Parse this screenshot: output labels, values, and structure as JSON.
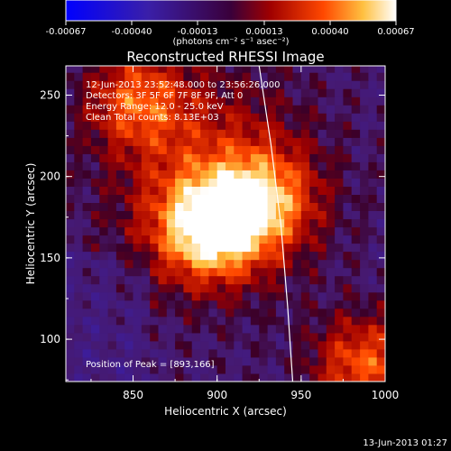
{
  "colorbar": {
    "tick_labels": [
      "-0.00067",
      "-0.00040",
      "-0.00013",
      "0.00013",
      "0.00040",
      "0.00067"
    ],
    "unit_label": "(photons cm⁻² s⁻¹ asec⁻²)",
    "range": [
      -0.00067,
      0.00067
    ]
  },
  "plot": {
    "title": "Reconstructed RHESSI Image",
    "xlabel": "Heliocentric X (arcsec)",
    "ylabel": "Heliocentric Y (arcsec)",
    "x_ticks": [
      "850",
      "900",
      "950",
      "1000"
    ],
    "y_ticks": [
      "100",
      "150",
      "200",
      "250"
    ],
    "annotations": [
      "12-Jun-2013 23:52:48.000 to 23:56:26.000",
      "Detectors: 3F 5F 6F 7F 8F 9F, Att 0",
      "Energy Range: 12.0 - 25.0 keV",
      "Clean     Total counts: 8.13E+03"
    ],
    "peak_label": "Position of Peak = [893,166]",
    "timestamp": "13-Jun-2013 01:27"
  },
  "chart_data": {
    "type": "heatmap",
    "title": "Reconstructed RHESSI Image",
    "xlabel": "Heliocentric X (arcsec)",
    "ylabel": "Heliocentric Y (arcsec)",
    "xlim": [
      810,
      1000
    ],
    "ylim": [
      74,
      268
    ],
    "z_range": [
      -0.00067,
      0.00067
    ],
    "colormap": "blue-purple-red-yellow-white",
    "peak_position": [
      893,
      166
    ],
    "sources": [
      {
        "x": 893,
        "y": 166,
        "amplitude": 0.00067
      },
      {
        "x": 925,
        "y": 183,
        "amplitude": 0.00045
      },
      {
        "x": 850,
        "y": 245,
        "amplitude": 0.0004
      },
      {
        "x": 985,
        "y": 82,
        "amplitude": 0.00045
      }
    ],
    "limb_curve": [
      [
        925,
        268
      ],
      [
        932,
        220
      ],
      [
        938,
        170
      ],
      [
        942,
        120
      ],
      [
        945,
        74
      ]
    ],
    "grid": false
  }
}
